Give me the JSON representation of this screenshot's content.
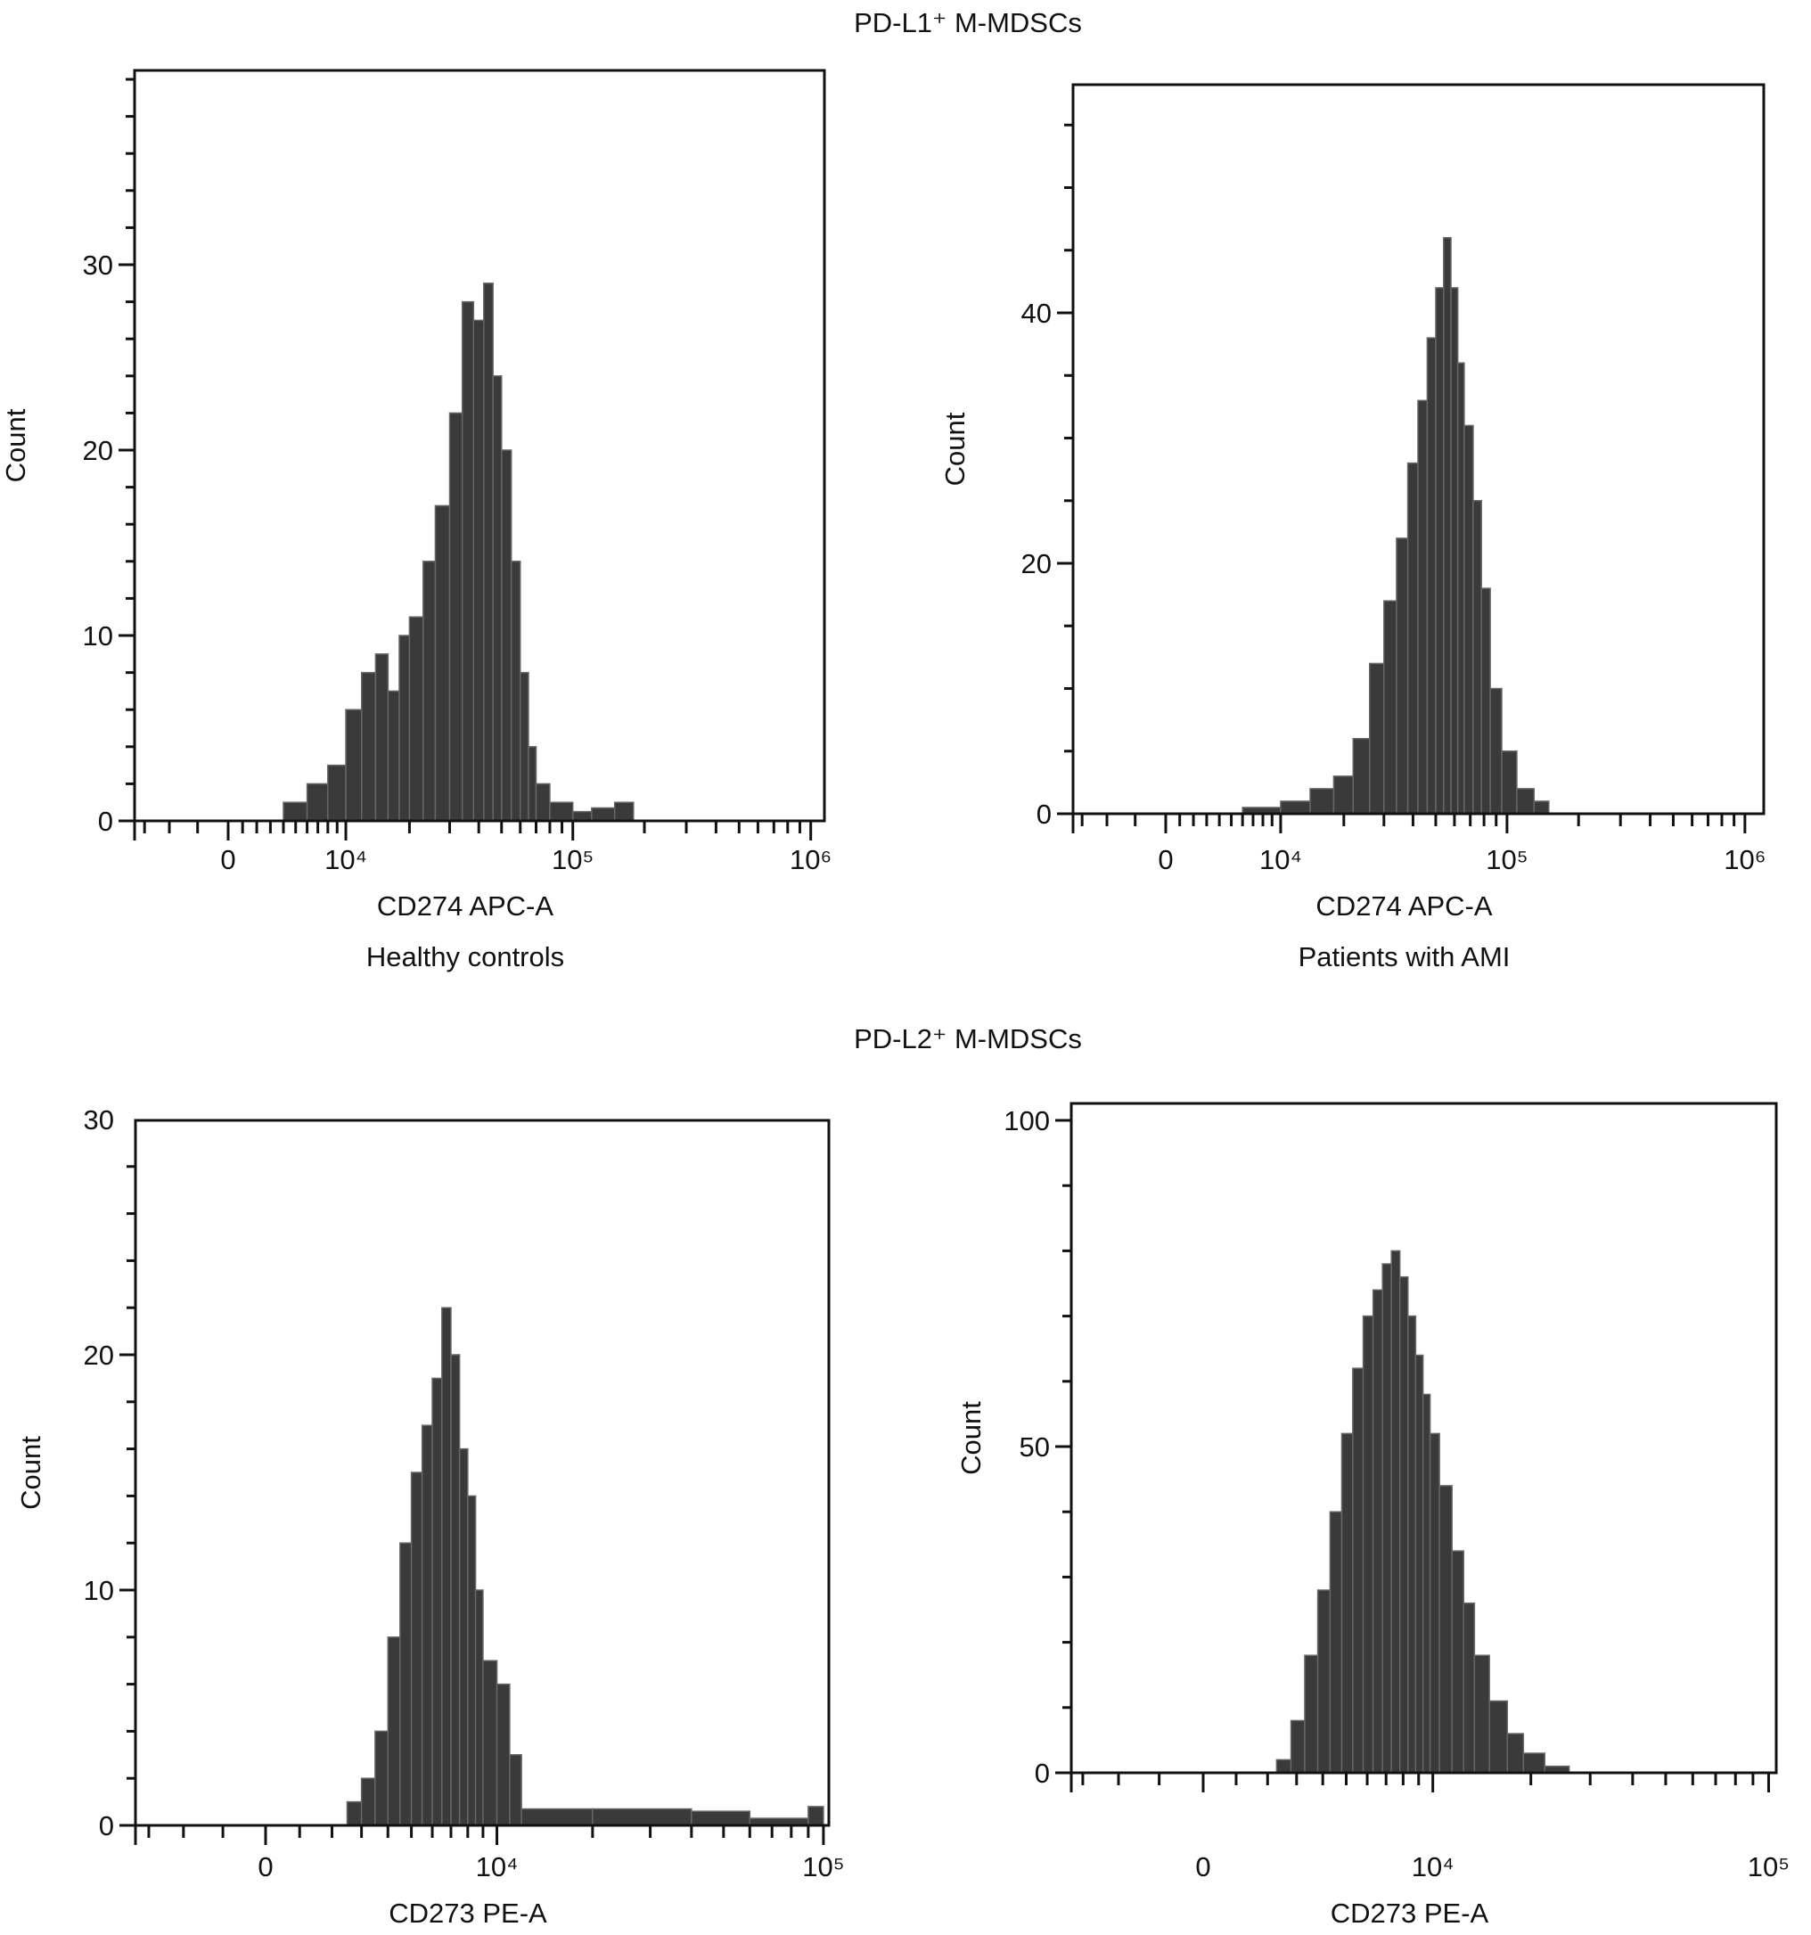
{
  "sections": [
    {
      "title": "PD-L1⁺ M-MDSCs"
    },
    {
      "title": "PD-L2⁺ M-MDSCs"
    }
  ],
  "chart_data": [
    {
      "type": "bar",
      "subtitle": "Healthy controls",
      "xlabel": "CD274 APC-A",
      "ylabel": "Count",
      "x_scale": "biexponential",
      "x_ticks": [
        "0",
        "10⁴",
        "10⁵",
        "10⁶"
      ],
      "y_ticks": [
        "0",
        "10",
        "20",
        "30"
      ],
      "ylim": [
        0,
        37
      ],
      "fill_color": "#3a3a3a",
      "bins": [
        [
          4000,
          1
        ],
        [
          6000,
          2
        ],
        [
          8000,
          3
        ],
        [
          10000,
          6
        ],
        [
          12000,
          8
        ],
        [
          14000,
          9
        ],
        [
          16000,
          7
        ],
        [
          18000,
          10
        ],
        [
          20000,
          11
        ],
        [
          23000,
          14
        ],
        [
          26000,
          17
        ],
        [
          30000,
          22
        ],
        [
          34000,
          28
        ],
        [
          38000,
          27
        ],
        [
          42000,
          29
        ],
        [
          46000,
          24
        ],
        [
          50000,
          20
        ],
        [
          55000,
          14
        ],
        [
          60000,
          8
        ],
        [
          65000,
          4
        ],
        [
          70000,
          2
        ],
        [
          80000,
          1
        ],
        [
          100000,
          0.5
        ],
        [
          120000,
          0.7
        ],
        [
          150000,
          1
        ],
        [
          180000,
          0
        ]
      ]
    },
    {
      "type": "bar",
      "subtitle": "Patients with AMI",
      "xlabel": "CD274 APC-A",
      "ylabel": "Count",
      "x_scale": "biexponential",
      "x_ticks": [
        "0",
        "10⁴",
        "10⁵",
        "10⁶"
      ],
      "y_ticks": [
        "0",
        "20",
        "40"
      ],
      "ylim": [
        0,
        58
      ],
      "fill_color": "#3a3a3a",
      "bins": [
        [
          6000,
          0.5
        ],
        [
          10000,
          1
        ],
        [
          14000,
          2
        ],
        [
          18000,
          3
        ],
        [
          22000,
          6
        ],
        [
          26000,
          12
        ],
        [
          30000,
          17
        ],
        [
          34000,
          22
        ],
        [
          38000,
          28
        ],
        [
          42000,
          33
        ],
        [
          46000,
          38
        ],
        [
          50000,
          42
        ],
        [
          54000,
          46
        ],
        [
          58000,
          42
        ],
        [
          62000,
          36
        ],
        [
          66000,
          31
        ],
        [
          72000,
          25
        ],
        [
          78000,
          18
        ],
        [
          85000,
          10
        ],
        [
          95000,
          5
        ],
        [
          110000,
          2
        ],
        [
          130000,
          1
        ],
        [
          150000,
          0
        ]
      ]
    },
    {
      "type": "bar",
      "xlabel": "CD273 PE-A",
      "ylabel": "Count",
      "x_scale": "biexponential",
      "x_ticks": [
        "0",
        "10⁴",
        "10⁵"
      ],
      "y_ticks": [
        "0",
        "10",
        "20",
        "30"
      ],
      "ylim": [
        0,
        30
      ],
      "fill_color": "#3a3a3a",
      "bins": [
        [
          2500,
          1
        ],
        [
          3000,
          2
        ],
        [
          3500,
          4
        ],
        [
          4000,
          8
        ],
        [
          4500,
          12
        ],
        [
          5000,
          15
        ],
        [
          5500,
          17
        ],
        [
          6000,
          19
        ],
        [
          6500,
          22
        ],
        [
          7000,
          20
        ],
        [
          7500,
          16
        ],
        [
          8000,
          14
        ],
        [
          8500,
          10
        ],
        [
          9000,
          7
        ],
        [
          10000,
          6
        ],
        [
          11000,
          3
        ],
        [
          12000,
          0.7
        ],
        [
          20000,
          0.7
        ],
        [
          40000,
          0.6
        ],
        [
          60000,
          0.3
        ],
        [
          90000,
          0.8
        ],
        [
          100000,
          0
        ]
      ]
    },
    {
      "type": "bar",
      "xlabel": "CD273 PE-A",
      "ylabel": "Count",
      "x_scale": "biexponential",
      "x_ticks": [
        "0",
        "10⁴",
        "10⁵"
      ],
      "y_ticks": [
        "0",
        "50",
        "100"
      ],
      "ylim": [
        0,
        102
      ],
      "fill_color": "#3a3a3a",
      "bins": [
        [
          2300,
          2
        ],
        [
          2800,
          8
        ],
        [
          3300,
          18
        ],
        [
          3800,
          28
        ],
        [
          4300,
          40
        ],
        [
          4800,
          52
        ],
        [
          5300,
          62
        ],
        [
          5800,
          70
        ],
        [
          6300,
          74
        ],
        [
          6800,
          78
        ],
        [
          7300,
          80
        ],
        [
          7800,
          76
        ],
        [
          8300,
          70
        ],
        [
          8800,
          64
        ],
        [
          9300,
          58
        ],
        [
          9800,
          52
        ],
        [
          10500,
          44
        ],
        [
          11500,
          34
        ],
        [
          12500,
          26
        ],
        [
          13500,
          18
        ],
        [
          15000,
          11
        ],
        [
          17000,
          6
        ],
        [
          19000,
          3
        ],
        [
          22000,
          1
        ],
        [
          26000,
          0
        ]
      ]
    }
  ]
}
